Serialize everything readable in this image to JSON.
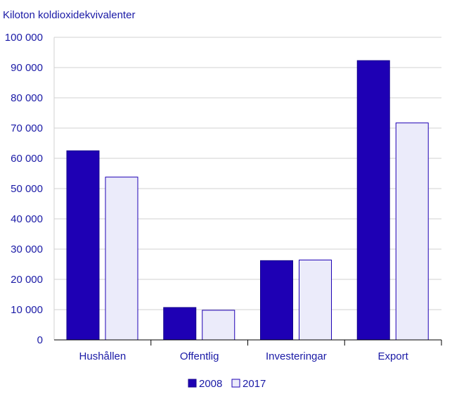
{
  "chart_data": {
    "type": "bar",
    "ylabel": "Kiloton koldioxidekvivalenter",
    "categories": [
      "Hushållen",
      "Offentlig",
      "Investeringar",
      "Export"
    ],
    "series": [
      {
        "name": "2008",
        "values": [
          62500,
          10700,
          26200,
          92300
        ],
        "color": "#1e00b4",
        "stroke": "#14008c"
      },
      {
        "name": "2017",
        "values": [
          53800,
          9800,
          26400,
          71700
        ],
        "color": "#ebebfa",
        "stroke": "#1e00b4"
      }
    ],
    "ylim": [
      0,
      100000
    ],
    "yticks": [
      0,
      10000,
      20000,
      30000,
      40000,
      50000,
      60000,
      70000,
      80000,
      90000,
      100000
    ],
    "ytick_labels": [
      "0",
      "10 000",
      "20 000",
      "30 000",
      "40 000",
      "50 000",
      "60 000",
      "70 000",
      "80 000",
      "90 000",
      "100 000"
    ],
    "grid": true,
    "legend_position": "bottom-center"
  }
}
